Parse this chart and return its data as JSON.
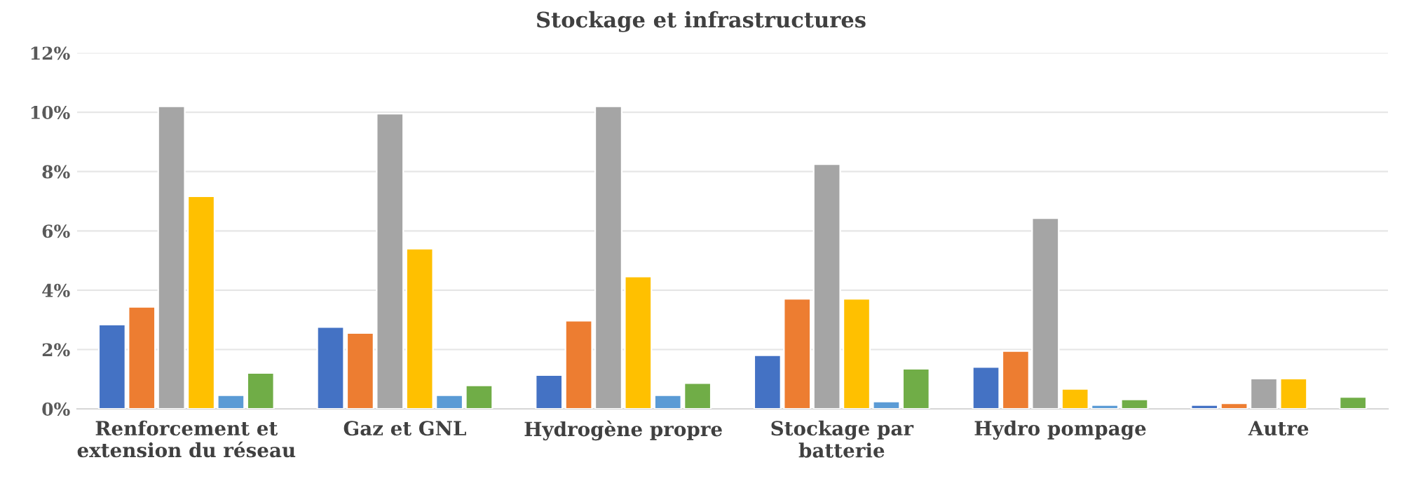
{
  "chart_data": {
    "type": "bar",
    "title": "Stockage et infrastructures",
    "categories": [
      "Renforcement et\nextension du réseau",
      "Gaz et GNL",
      "Hydrogène propre",
      "Stockage par\nbatterie",
      "Hydro pompage",
      "Autre"
    ],
    "series": [
      {
        "color": "#4472c4",
        "values": [
          2.84,
          2.76,
          1.14,
          1.81,
          1.41,
          0.13
        ]
      },
      {
        "color": "#ed7d31",
        "values": [
          3.44,
          2.56,
          2.97,
          3.71,
          1.95,
          0.19
        ]
      },
      {
        "color": "#a5a5a5",
        "values": [
          10.2,
          9.95,
          10.2,
          8.25,
          6.43,
          1.02
        ]
      },
      {
        "color": "#ffc000",
        "values": [
          7.17,
          5.4,
          4.46,
          3.71,
          0.67,
          1.02
        ]
      },
      {
        "color": "#5b9bd5",
        "values": [
          0.46,
          0.46,
          0.46,
          0.25,
          0.13,
          null
        ]
      },
      {
        "color": "#70ad47",
        "values": [
          1.21,
          0.79,
          0.87,
          1.35,
          0.32,
          0.4
        ]
      }
    ],
    "ylim": [
      0,
      12
    ],
    "yticks": [
      {
        "value": 0,
        "label": "0%"
      },
      {
        "value": 2,
        "label": "2%"
      },
      {
        "value": 4,
        "label": "4%"
      },
      {
        "value": 6,
        "label": "6%"
      },
      {
        "value": 8,
        "label": "8%"
      },
      {
        "value": 10,
        "label": "10%"
      },
      {
        "value": 12,
        "label": "12%"
      }
    ],
    "grid": "y"
  }
}
